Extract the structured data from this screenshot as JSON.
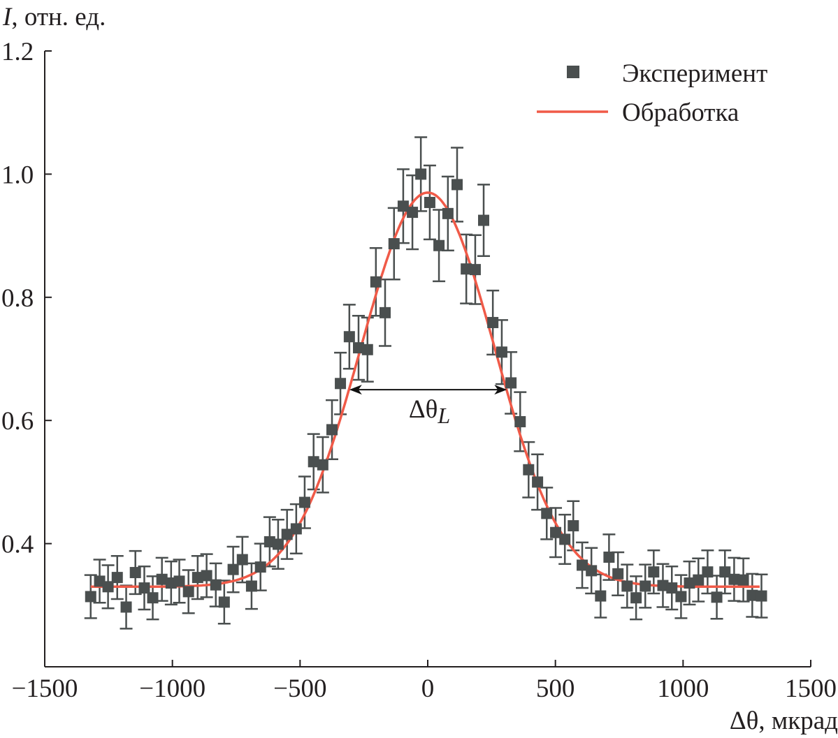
{
  "chart_data": {
    "type": "scatter",
    "title": "",
    "ylabel_italic": "I",
    "ylabel": ", отн. ед.",
    "xlabel": "Δθ, мкрад",
    "xlim": [
      -1500,
      1500
    ],
    "ylim": [
      0.2,
      1.2
    ],
    "xticks": [
      -1500,
      -1000,
      -500,
      0,
      500,
      1000,
      1500
    ],
    "xtick_labels": [
      "−1500",
      "−1000",
      "−500",
      "0",
      "500",
      "1000",
      "1500"
    ],
    "yticks": [
      0.4,
      0.6,
      0.8,
      1.0,
      1.2
    ],
    "ytick_labels": [
      "0.4",
      "0.6",
      "0.8",
      "1.0",
      "1.2"
    ],
    "grid": false,
    "legend_position": "top-right",
    "colors": {
      "points": "#4a4f4f",
      "fit": "#f05a48",
      "axes": "#231f20"
    },
    "series": [
      {
        "name": "Эксперимент",
        "kind": "points-with-errorbars",
        "marker": "square",
        "x": [
          -1320,
          -1285,
          -1252,
          -1216,
          -1181,
          -1145,
          -1110,
          -1077,
          -1041,
          -1005,
          -973,
          -937,
          -901,
          -866,
          -830,
          -797,
          -762,
          -726,
          -690,
          -655,
          -619,
          -586,
          -551,
          -515,
          -482,
          -447,
          -411,
          -375,
          -342,
          -307,
          -271,
          -236,
          -203,
          -167,
          -132,
          -96,
          -60,
          -27,
          8,
          44,
          79,
          115,
          151,
          186,
          219,
          255,
          290,
          326,
          362,
          395,
          430,
          466,
          501,
          537,
          570,
          605,
          641,
          677,
          710,
          745,
          781,
          816,
          852,
          885,
          921,
          956,
          992,
          1025,
          1060,
          1096,
          1132,
          1164,
          1200,
          1236,
          1271,
          1307
        ],
        "y": [
          0.314,
          0.339,
          0.33,
          0.345,
          0.297,
          0.353,
          0.328,
          0.312,
          0.342,
          0.336,
          0.339,
          0.322,
          0.345,
          0.348,
          0.333,
          0.305,
          0.358,
          0.374,
          0.331,
          0.362,
          0.403,
          0.399,
          0.415,
          0.424,
          0.467,
          0.533,
          0.528,
          0.585,
          0.66,
          0.736,
          0.718,
          0.715,
          0.825,
          0.775,
          0.887,
          0.948,
          0.938,
          1.0,
          0.954,
          0.884,
          0.936,
          0.983,
          0.846,
          0.845,
          0.925,
          0.759,
          0.711,
          0.661,
          0.598,
          0.52,
          0.5,
          0.449,
          0.418,
          0.407,
          0.429,
          0.365,
          0.356,
          0.315,
          0.378,
          0.351,
          0.331,
          0.312,
          0.331,
          0.354,
          0.332,
          0.328,
          0.314,
          0.336,
          0.341,
          0.354,
          0.313,
          0.354,
          0.342,
          0.341,
          0.316,
          0.315
        ],
        "yerr": [
          0.035,
          0.035,
          0.035,
          0.035,
          0.035,
          0.035,
          0.035,
          0.035,
          0.035,
          0.035,
          0.035,
          0.035,
          0.035,
          0.035,
          0.035,
          0.035,
          0.037,
          0.037,
          0.037,
          0.038,
          0.04,
          0.04,
          0.04,
          0.04,
          0.042,
          0.045,
          0.045,
          0.048,
          0.05,
          0.052,
          0.052,
          0.052,
          0.055,
          0.054,
          0.058,
          0.06,
          0.06,
          0.06,
          0.06,
          0.058,
          0.06,
          0.06,
          0.056,
          0.056,
          0.058,
          0.052,
          0.052,
          0.05,
          0.048,
          0.045,
          0.045,
          0.042,
          0.04,
          0.04,
          0.04,
          0.037,
          0.037,
          0.035,
          0.037,
          0.035,
          0.035,
          0.035,
          0.035,
          0.035,
          0.035,
          0.035,
          0.035,
          0.035,
          0.035,
          0.035,
          0.035,
          0.035,
          0.035,
          0.035,
          0.035,
          0.035
        ]
      },
      {
        "name": "Обработка",
        "kind": "fit-line",
        "model": "gaussian",
        "baseline": 0.33,
        "amplitude": 0.64,
        "center": 0,
        "fwhm": 617,
        "x_range": [
          -1320,
          1300
        ]
      }
    ],
    "annotations": [
      {
        "type": "double-arrow",
        "x_from": -307,
        "x_to": 310,
        "y": 0.65,
        "label_main": "Δθ",
        "label_sub": "L"
      }
    ]
  }
}
